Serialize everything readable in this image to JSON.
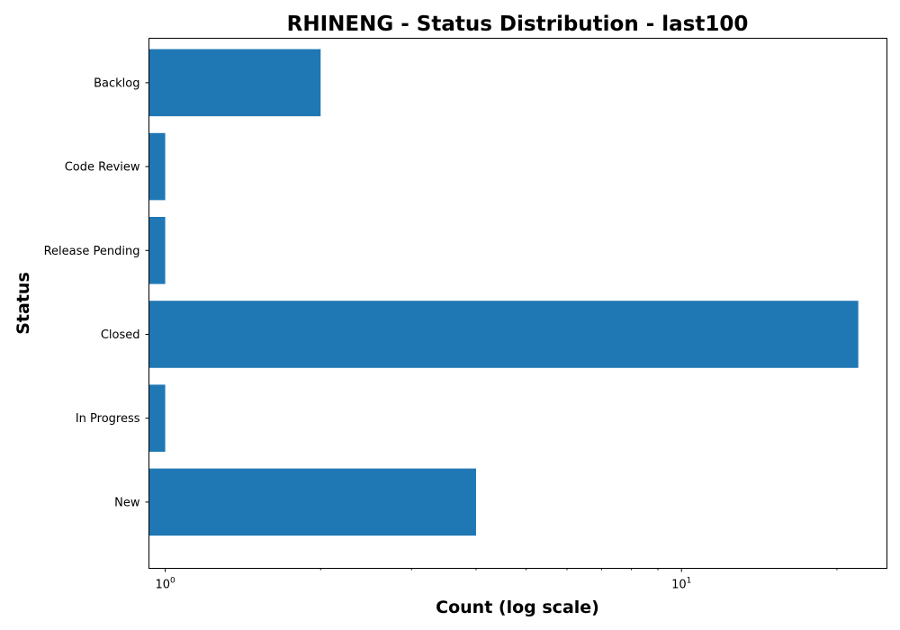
{
  "chart_data": {
    "type": "bar",
    "orientation": "horizontal",
    "title": "RHINENG - Status Distribution - last100",
    "xlabel": "Count (log scale)",
    "ylabel": "Status",
    "x_scale": "log",
    "xlim": [
      0.93,
      25
    ],
    "categories": [
      "New",
      "In Progress",
      "Closed",
      "Release Pending",
      "Code Review",
      "Backlog"
    ],
    "values": [
      4,
      1,
      22,
      1,
      1,
      2
    ],
    "x_major_ticks": [
      {
        "base": "10",
        "exp": "0",
        "value": 1
      },
      {
        "base": "10",
        "exp": "1",
        "value": 10
      }
    ],
    "x_minor_ticks": [
      2,
      3,
      4,
      5,
      6,
      7,
      8,
      9,
      20
    ],
    "bar_color": "#1f77b4",
    "grid": false,
    "legend": "none"
  }
}
